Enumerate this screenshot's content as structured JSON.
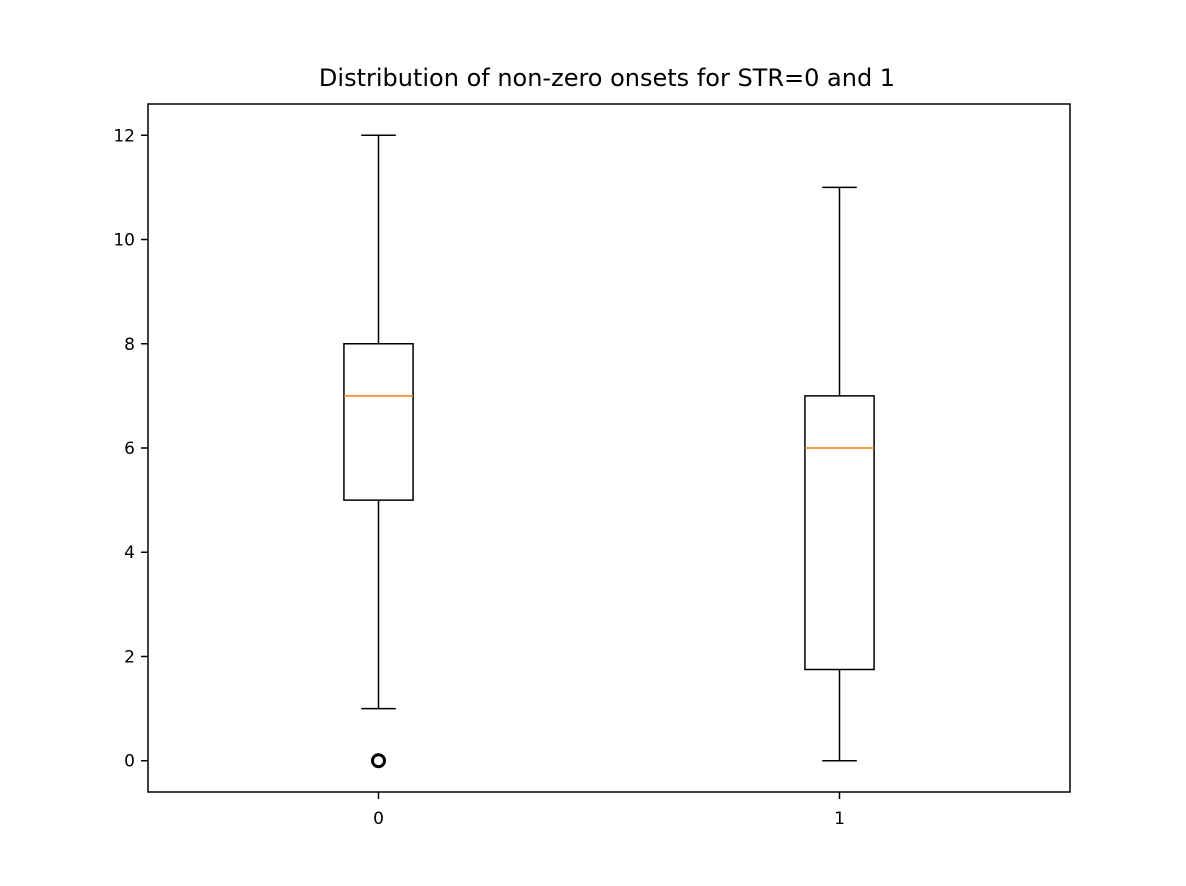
{
  "chart_data": {
    "type": "box",
    "title": "Distribution of non-zero onsets for STR=0 and 1",
    "xlabel": "",
    "ylabel": "",
    "categories": [
      "0",
      "1"
    ],
    "ylim": [
      -0.6,
      12.6
    ],
    "yticks": [
      0,
      2,
      4,
      6,
      8,
      10,
      12
    ],
    "grid": false,
    "boxes": [
      {
        "category": "0",
        "whisker_low": 1,
        "q1": 5,
        "median": 7,
        "q3": 8,
        "whisker_high": 12,
        "fliers": [
          0
        ]
      },
      {
        "category": "1",
        "whisker_low": 0,
        "q1": 1.75,
        "median": 6,
        "q3": 7,
        "whisker_high": 11,
        "fliers": []
      }
    ],
    "colors": {
      "box": "#000000",
      "median": "#ff7f0e",
      "flier": "#000000"
    }
  }
}
